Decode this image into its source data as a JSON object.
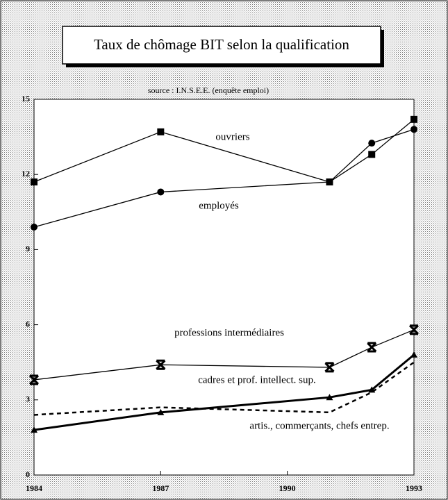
{
  "chart_data": {
    "type": "line",
    "title": "Taux de chômage BIT selon la qualification",
    "subtitle": "source : I.N.S.E.E. (enquête emploi)",
    "x": [
      1984,
      1987,
      1991,
      1992,
      1993
    ],
    "xlim": [
      1984,
      1993
    ],
    "xticks": [
      1984,
      1987,
      1990,
      1993
    ],
    "ylim": [
      0,
      15
    ],
    "yticks": [
      0,
      3,
      6,
      9,
      12,
      15
    ],
    "series": [
      {
        "name": "ouvriers",
        "color": "#000000",
        "marker": "square",
        "values": [
          11.7,
          13.7,
          11.7,
          12.8,
          14.2
        ]
      },
      {
        "name": "employés",
        "color": "#000000",
        "marker": "circle",
        "values": [
          9.9,
          11.3,
          11.7,
          13.25,
          13.8
        ]
      },
      {
        "name": "professions intermédiaires",
        "color": "#000000",
        "marker": "x",
        "values": [
          3.8,
          4.4,
          4.3,
          5.1,
          5.8
        ]
      },
      {
        "name": "cadres et prof. intellect. sup.",
        "color": "#000000",
        "marker": "triangle",
        "width": 3,
        "values": [
          1.8,
          2.5,
          3.1,
          3.4,
          4.8
        ]
      },
      {
        "name": "artis., commerçants, chefs entrep.",
        "color": "#000000",
        "dash": true,
        "width": 2.5,
        "values": [
          2.4,
          2.7,
          2.5,
          3.3,
          4.5
        ]
      }
    ]
  }
}
